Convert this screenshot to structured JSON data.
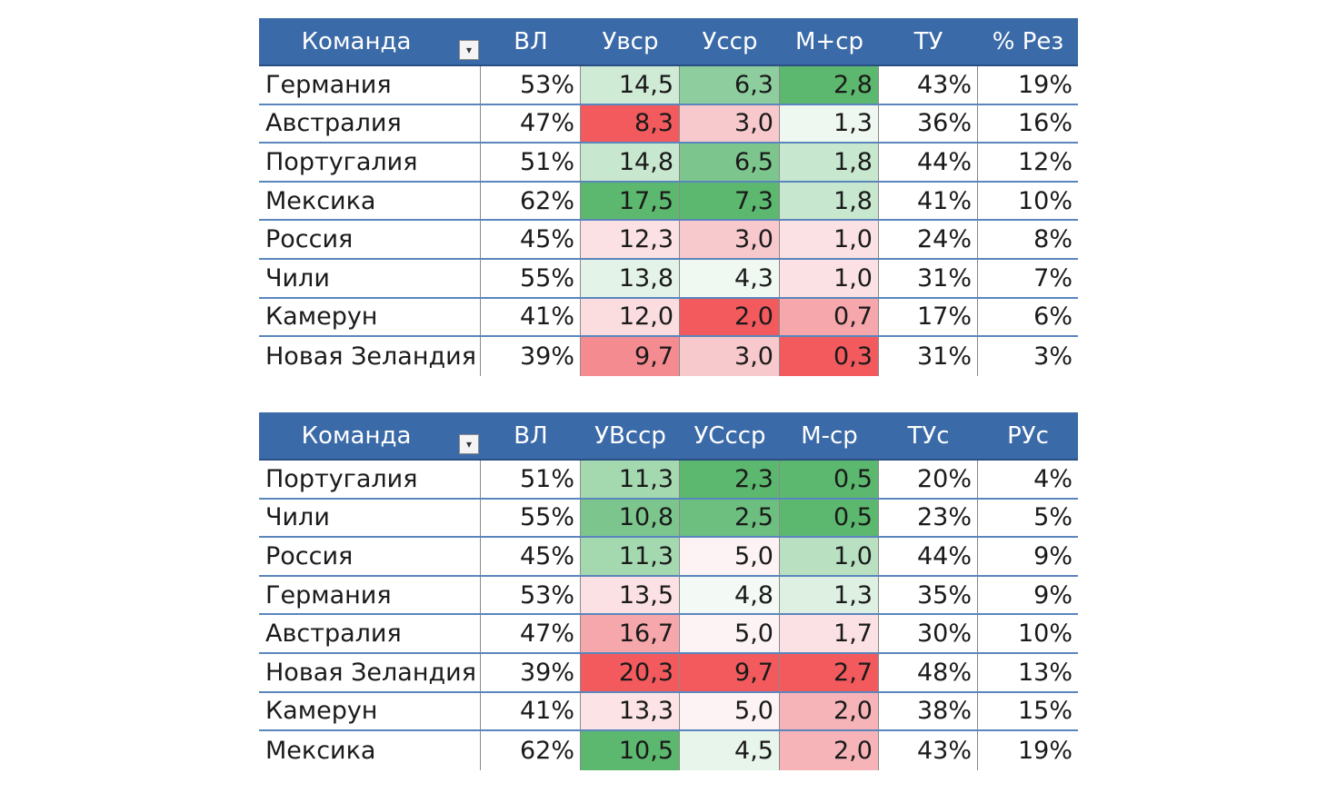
{
  "table1": {
    "headers": [
      "Команда",
      "ВЛ",
      "Увср",
      "Уcср",
      "М+ср",
      "ТУ",
      "% Рез"
    ],
    "rows": [
      {
        "team": "Германия",
        "values": [
          "53%",
          "14,5",
          "6,3",
          "2,8",
          "43%",
          "19%"
        ],
        "colors": [
          "",
          "#cfead5",
          "#8ece9e",
          "#5cb86e",
          "",
          ""
        ]
      },
      {
        "team": "Австралия",
        "values": [
          "47%",
          "8,3",
          "3,0",
          "1,3",
          "36%",
          "16%"
        ],
        "colors": [
          "",
          "#f25a5e",
          "#f8c9cc",
          "#eef7f0",
          "",
          ""
        ]
      },
      {
        "team": "Португалия",
        "values": [
          "51%",
          "14,8",
          "6,5",
          "1,8",
          "44%",
          "12%"
        ],
        "colors": [
          "",
          "#c8e7cf",
          "#7cc68e",
          "#c8e7cf",
          "",
          ""
        ]
      },
      {
        "team": "Мексика",
        "values": [
          "62%",
          "17,5",
          "7,3",
          "1,8",
          "41%",
          "10%"
        ],
        "colors": [
          "",
          "#5cb86e",
          "#5cb86e",
          "#c8e7cf",
          "",
          ""
        ]
      },
      {
        "team": "Россия",
        "values": [
          "45%",
          "12,3",
          "3,0",
          "1,0",
          "24%",
          "8%"
        ],
        "colors": [
          "",
          "#fbe1e3",
          "#f8c9cc",
          "#fbe1e3",
          "",
          ""
        ]
      },
      {
        "team": "Чили",
        "values": [
          "55%",
          "13,8",
          "4,3",
          "1,0",
          "31%",
          "7%"
        ],
        "colors": [
          "",
          "#e4f3e7",
          "#f0f8f2",
          "#fbe1e3",
          "",
          ""
        ]
      },
      {
        "team": "Камерун",
        "values": [
          "41%",
          "12,0",
          "2,0",
          "0,7",
          "17%",
          "6%"
        ],
        "colors": [
          "",
          "#fbdde0",
          "#f25a5e",
          "#f5a7ab",
          "",
          ""
        ]
      },
      {
        "team": "Новая Зеландия",
        "values": [
          "39%",
          "9,7",
          "3,0",
          "0,3",
          "31%",
          "3%"
        ],
        "colors": [
          "",
          "#f48b90",
          "#f8c9cc",
          "#f25a5e",
          "",
          ""
        ]
      }
    ]
  },
  "table2": {
    "headers": [
      "Команда",
      "ВЛ",
      "УВсср",
      "УСсср",
      "М-ср",
      "ТУс",
      "РУс"
    ],
    "rows": [
      {
        "team": "Португалия",
        "values": [
          "51%",
          "11,3",
          "2,3",
          "0,5",
          "20%",
          "4%"
        ],
        "colors": [
          "",
          "#a4d9b0",
          "#5cb86e",
          "#5cb86e",
          "",
          ""
        ]
      },
      {
        "team": "Чили",
        "values": [
          "55%",
          "10,8",
          "2,5",
          "0,5",
          "23%",
          "5%"
        ],
        "colors": [
          "",
          "#7cc68e",
          "#6cbf7f",
          "#5cb86e",
          "",
          ""
        ]
      },
      {
        "team": "Россия",
        "values": [
          "45%",
          "11,3",
          "5,0",
          "1,0",
          "44%",
          "9%"
        ],
        "colors": [
          "",
          "#a4d9b0",
          "#fdf3f4",
          "#b8e0c1",
          "",
          ""
        ]
      },
      {
        "team": "Германия",
        "values": [
          "53%",
          "13,5",
          "4,8",
          "1,3",
          "35%",
          "9%"
        ],
        "colors": [
          "",
          "#fbe1e3",
          "#f3faf5",
          "#ddf0e2",
          "",
          ""
        ]
      },
      {
        "team": "Австралия",
        "values": [
          "47%",
          "16,7",
          "5,0",
          "1,7",
          "30%",
          "10%"
        ],
        "colors": [
          "",
          "#f5a7ab",
          "#fdf3f4",
          "#fbe1e3",
          "",
          ""
        ]
      },
      {
        "team": "Новая Зеландия",
        "values": [
          "39%",
          "20,3",
          "9,7",
          "2,7",
          "48%",
          "13%"
        ],
        "colors": [
          "",
          "#f25a5e",
          "#f25a5e",
          "#f25a5e",
          "",
          ""
        ]
      },
      {
        "team": "Камерун",
        "values": [
          "41%",
          "13,3",
          "5,0",
          "2,0",
          "38%",
          "15%"
        ],
        "colors": [
          "",
          "#fce4e6",
          "#fdf3f4",
          "#f6b4b8",
          "",
          ""
        ]
      },
      {
        "team": "Мексика",
        "values": [
          "62%",
          "10,5",
          "4,5",
          "2,0",
          "43%",
          "19%"
        ],
        "colors": [
          "",
          "#5cb86e",
          "#e8f5eb",
          "#f6b4b8",
          "",
          ""
        ]
      }
    ]
  },
  "icons": {
    "filter": "filter-dropdown-icon"
  }
}
